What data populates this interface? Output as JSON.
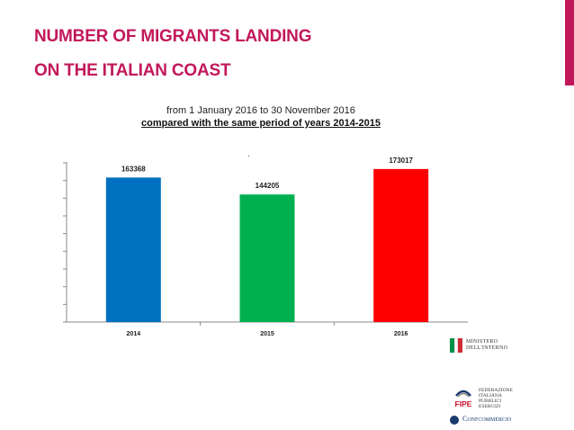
{
  "colors": {
    "accent": "#c2185b",
    "title": "#c2185b"
  },
  "title": {
    "line1": "NUMBER OF MIGRANTS LANDING",
    "line2": "ON THE ITALIAN COAST"
  },
  "chart_data": {
    "type": "bar",
    "subtitle_line1": "from 1 January 2016 to 30 November 2016",
    "subtitle_line2": "compared with the same period of years 2014-2015",
    "annotation": ".",
    "categories": [
      "2014",
      "2015",
      "2016"
    ],
    "values": [
      163368,
      144205,
      173017
    ],
    "data_labels": [
      "163368",
      "144205",
      "173017"
    ],
    "bar_colors": [
      "#0070c0",
      "#00b050",
      "#ff0000"
    ],
    "ylim": [
      0,
      180000
    ],
    "ytick_count": 9,
    "yticks_labeled": false,
    "grid": false,
    "legend": "none"
  },
  "logos": {
    "ministero": {
      "line1": "MINISTERO",
      "line2": "DELL'INTERNO",
      "flag_colors": [
        "#009246",
        "#ffffff",
        "#ce2b37"
      ]
    },
    "fipe": {
      "mark": "FIPE",
      "line1": "FEDERAZIONE",
      "line2": "ITALIANA",
      "line3": "PUBBLICI",
      "line4": "ESERCIZI",
      "color": "#c8102e"
    },
    "confcommercio": {
      "name": "Confcommercio",
      "color": "#1a3a6e"
    }
  }
}
